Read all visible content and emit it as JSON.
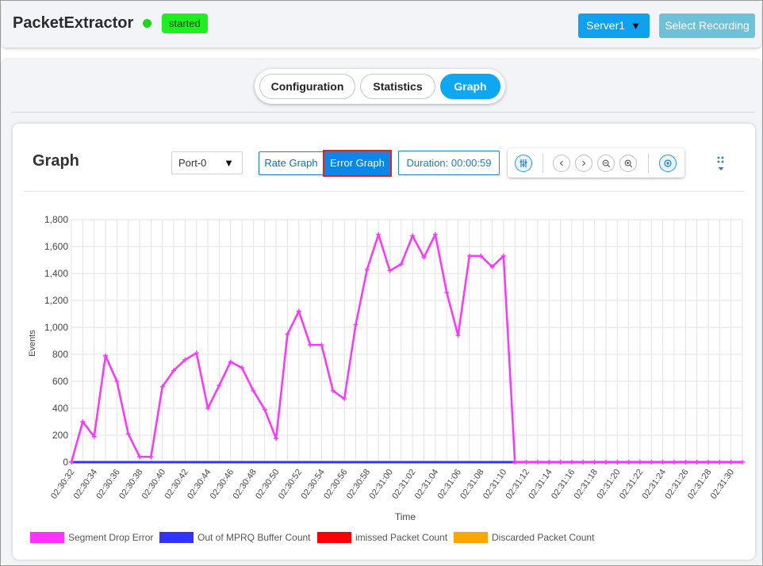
{
  "header": {
    "app_title": "PacketExtractor",
    "status_label": "started",
    "server_value": "Server1",
    "select_recording_label": "Select Recording"
  },
  "tabs": [
    {
      "label": "Configuration",
      "active": false
    },
    {
      "label": "Statistics",
      "active": false
    },
    {
      "label": "Graph",
      "active": true
    }
  ],
  "graph_card": {
    "title": "Graph",
    "port_value": "Port-0",
    "rate_graph_label": "Rate Graph",
    "error_graph_label": "Error Graph",
    "duration_label": "Duration: 00:00:59",
    "toolbar_icons": [
      "selection-zoom-icon",
      "pan-left-icon",
      "pan-right-icon",
      "zoom-out-icon",
      "zoom-in-icon",
      "reset-zoom-icon"
    ]
  },
  "colors": {
    "accent": "#0ea8f2",
    "status_green": "#1eef1e",
    "highlight_red": "#e1241f"
  },
  "chart_data": {
    "type": "line",
    "title": "",
    "xlabel": "Time",
    "ylabel": "Events",
    "ylim": [
      0,
      1800
    ],
    "yticks": [
      0,
      200,
      400,
      600,
      800,
      1000,
      1200,
      1400,
      1600,
      1800
    ],
    "ytick_labels": [
      "0",
      "200",
      "400",
      "600",
      "800",
      "1,000",
      "1,200",
      "1,400",
      "1,600",
      "1,800"
    ],
    "xtick_labels": [
      "02:30:32",
      "02:30:34",
      "02:30:36",
      "02:30:38",
      "02:30:40",
      "02:30:42",
      "02:30:44",
      "02:30:46",
      "02:30:48",
      "02:30:50",
      "02:30:52",
      "02:30:54",
      "02:30:56",
      "02:30:58",
      "02:31:00",
      "02:31:02",
      "02:31:04",
      "02:31:06",
      "02:31:08",
      "02:31:10",
      "02:31:12",
      "02:31:14",
      "02:31:16",
      "02:31:18",
      "02:31:20",
      "02:31:22",
      "02:31:24",
      "02:31:26",
      "02:31:28",
      "02:31:30"
    ],
    "x_seconds": [
      0,
      1,
      2,
      3,
      4,
      5,
      6,
      7,
      8,
      9,
      10,
      11,
      12,
      13,
      14,
      15,
      16,
      17,
      18,
      19,
      20,
      21,
      22,
      23,
      24,
      25,
      26,
      27,
      28,
      29,
      30,
      31,
      32,
      33,
      34,
      35,
      36,
      37,
      38,
      39,
      40,
      41,
      42,
      43,
      44,
      45,
      46,
      47,
      48,
      49,
      50,
      51,
      52,
      53,
      54,
      55,
      56,
      57,
      58,
      59
    ],
    "grid": true,
    "legend_position": "bottom-left",
    "series": [
      {
        "name": "Segment Drop Error",
        "color": "#ff33ff",
        "values": [
          0,
          300,
          190,
          790,
          600,
          210,
          40,
          40,
          560,
          680,
          760,
          810,
          400,
          570,
          745,
          700,
          530,
          390,
          175,
          950,
          1120,
          870,
          870,
          530,
          470,
          1020,
          1430,
          1690,
          1420,
          1470,
          1680,
          1520,
          1690,
          1260,
          940,
          1530,
          1530,
          1450,
          1530,
          0,
          0,
          0,
          0,
          0,
          0,
          0,
          0,
          0,
          0,
          0,
          0,
          0,
          0,
          0,
          0,
          0,
          0,
          0,
          0,
          0
        ]
      },
      {
        "name": "Out of MPRQ Buffer Count",
        "color": "#3333ff",
        "values": [
          0,
          0,
          0,
          0,
          0,
          0,
          0,
          0,
          0,
          0,
          0,
          0,
          0,
          0,
          0,
          0,
          0,
          0,
          0,
          0,
          0,
          0,
          0,
          0,
          0,
          0,
          0,
          0,
          0,
          0,
          0,
          0,
          0,
          0,
          0,
          0,
          0,
          0,
          0,
          0,
          0,
          0,
          0,
          0,
          0,
          0,
          0,
          0,
          0,
          0,
          0,
          0,
          0,
          0,
          0,
          0,
          0,
          0,
          0,
          0
        ]
      },
      {
        "name": "imissed Packet Count",
        "color": "#ff0000",
        "values": []
      },
      {
        "name": "Discarded Packet Count",
        "color": "#ffa500",
        "values": []
      }
    ]
  }
}
